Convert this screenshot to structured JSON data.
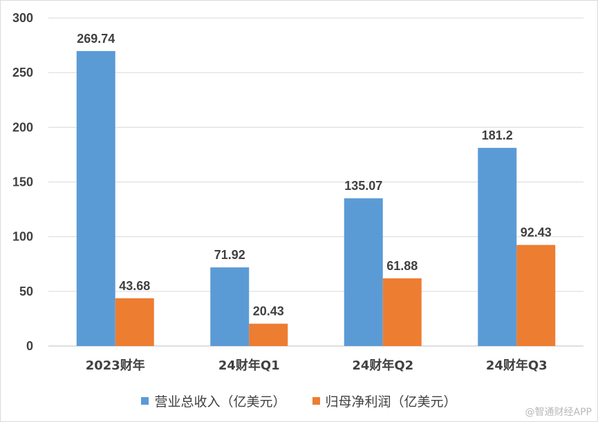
{
  "chart_data": {
    "type": "bar",
    "categories": [
      "2023财年",
      "24财年Q1",
      "24财年Q2",
      "24财年Q3"
    ],
    "series": [
      {
        "name": "营业总收入（亿美元）",
        "values": [
          269.74,
          71.92,
          135.07,
          181.2
        ],
        "labels": [
          "269.74",
          "71.92",
          "135.07",
          "181.2"
        ],
        "color": "#5b9bd5"
      },
      {
        "name": "归母净利润（亿美元）",
        "values": [
          43.68,
          20.43,
          61.88,
          92.43
        ],
        "labels": [
          "43.68",
          "20.43",
          "61.88",
          "92.43"
        ],
        "color": "#ed7d31"
      }
    ],
    "ylim": [
      0,
      300
    ],
    "yticks": [
      0,
      50,
      100,
      150,
      200,
      250,
      300
    ],
    "grid": true,
    "legend": "bottom"
  },
  "watermark": "@智通财经APP"
}
